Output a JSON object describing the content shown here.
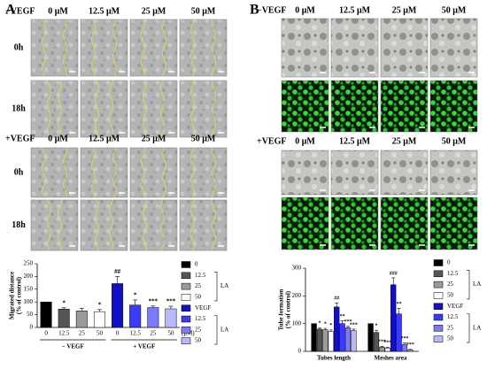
{
  "figure": {
    "panels": [
      {
        "label": "A",
        "groups": [
          {
            "treatment": "−VEGF",
            "concentrations": [
              "0 μM",
              "12.5 μM",
              "25 μM",
              "50 μM"
            ],
            "rows": [
              "0h",
              "18h"
            ]
          },
          {
            "treatment": "+VEGF",
            "concentrations": [
              "0 μM",
              "12.5 μM",
              "25 μM",
              "50 μM"
            ],
            "rows": [
              "0h",
              "18h"
            ]
          }
        ]
      },
      {
        "label": "B",
        "groups": [
          {
            "treatment": "−VEGF",
            "concentrations": [
              "0 μM",
              "12.5 μM",
              "25 μM",
              "50 μM"
            ]
          },
          {
            "treatment": "+VEGF",
            "concentrations": [
              "0 μM",
              "12.5 μM",
              "25 μM",
              "50 μM"
            ]
          }
        ]
      }
    ]
  },
  "chart_data": [
    {
      "type": "bar",
      "ylabel": [
        "Migrated distance",
        "(% of control)"
      ],
      "categories": [
        "0",
        "12.5",
        "25",
        "50",
        "0",
        "12.5",
        "25",
        "50"
      ],
      "x_unit": "(μM)",
      "group_labels": [
        "− VEGF",
        "+ VEGF"
      ],
      "values": [
        100,
        72,
        65,
        62,
        172,
        88,
        78,
        73
      ],
      "errors": [
        null,
        5,
        10,
        8,
        28,
        20,
        6,
        10
      ],
      "annotations": [
        null,
        "*",
        null,
        "*",
        "##",
        "*",
        "***",
        "***"
      ],
      "colors": [
        "#000000",
        "#555555",
        "#9a9a9a",
        "#ffffff",
        "#1010c8",
        "#3a3aff",
        "#7a7aff",
        "#b8b8ff"
      ],
      "ylim": [
        0,
        250
      ],
      "yticks": [
        0,
        50,
        100,
        150,
        200,
        250
      ],
      "legend": {
        "names": [
          "0",
          "12.5",
          "25",
          "50",
          "VEGF",
          "12.5",
          "25",
          "50"
        ],
        "brackets": [
          "LA",
          "LA"
        ]
      }
    },
    {
      "type": "grouped_bar",
      "ylabel": [
        "Tube formation",
        "(% of control)"
      ],
      "categories": [
        "Tubes length",
        "Meshes area"
      ],
      "series": [
        {
          "name": "0",
          "color": "#000000",
          "values": [
            100,
            100
          ],
          "errors": [
            null,
            null
          ],
          "annotations": [
            null,
            null
          ]
        },
        {
          "name": "12.5",
          "color": "#555555",
          "values": [
            80,
            68
          ],
          "errors": [
            5,
            8
          ],
          "annotations": [
            "*",
            "*"
          ]
        },
        {
          "name": "25",
          "color": "#9a9a9a",
          "values": [
            78,
            15
          ],
          "errors": [
            5,
            3
          ],
          "annotations": [
            "*",
            "***"
          ]
        },
        {
          "name": "50",
          "color": "#ffffff",
          "values": [
            72,
            12
          ],
          "errors": [
            5,
            3
          ],
          "annotations": [
            "*",
            "***"
          ]
        },
        {
          "name": "VEGF",
          "color": "#1010c8",
          "values": [
            160,
            240
          ],
          "errors": [
            15,
            25
          ],
          "annotations": [
            "##",
            "###"
          ]
        },
        {
          "name": "12.5",
          "color": "#3a3aff",
          "values": [
            100,
            135
          ],
          "errors": [
            10,
            20
          ],
          "annotations": [
            "**",
            "**"
          ]
        },
        {
          "name": "25",
          "color": "#7a7aff",
          "values": [
            85,
            25
          ],
          "errors": [
            5,
            5
          ],
          "annotations": [
            "***",
            "***"
          ]
        },
        {
          "name": "50",
          "color": "#b8b8ff",
          "values": [
            75,
            5
          ],
          "errors": [
            5,
            2
          ],
          "annotations": [
            "***",
            "***"
          ]
        }
      ],
      "ylim": [
        0,
        300
      ],
      "yticks": [
        0,
        100,
        200,
        300
      ],
      "legend": {
        "brackets": [
          "LA",
          "LA"
        ]
      }
    }
  ]
}
